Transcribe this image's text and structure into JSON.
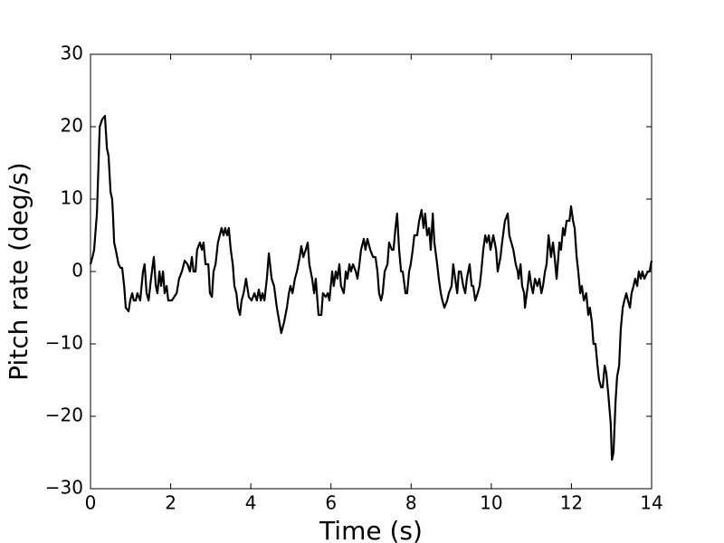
{
  "chart_data": {
    "type": "line",
    "xlabel": "Time (s)",
    "ylabel": "Pitch rate (deg/s)",
    "color": "#000000",
    "x": [
      0,
      0.05,
      0.09,
      0.16,
      0.23,
      0.29,
      0.36,
      0.41,
      0.45,
      0.5,
      0.54,
      0.56,
      0.59,
      0.63,
      0.7,
      0.75,
      0.79,
      0.84,
      0.88,
      0.95,
      0.99,
      1.04,
      1.08,
      1.13,
      1.17,
      1.24,
      1.31,
      1.35,
      1.4,
      1.45,
      1.51,
      1.58,
      1.63,
      1.67,
      1.72,
      1.76,
      1.81,
      1.85,
      1.9,
      1.94,
      2.03,
      2.15,
      2.21,
      2.28,
      2.35,
      2.42,
      2.48,
      2.53,
      2.57,
      2.62,
      2.66,
      2.73,
      2.78,
      2.82,
      2.87,
      2.94,
      2.98,
      3.03,
      3.07,
      3.12,
      3.18,
      3.27,
      3.32,
      3.36,
      3.41,
      3.45,
      3.5,
      3.55,
      3.59,
      3.64,
      3.68,
      3.73,
      3.77,
      3.82,
      3.88,
      3.95,
      4.02,
      4.09,
      4.15,
      4.2,
      4.25,
      4.29,
      4.34,
      4.4,
      4.45,
      4.52,
      4.58,
      4.65,
      4.76,
      4.83,
      4.9,
      4.95,
      4.99,
      5.04,
      5.1,
      5.15,
      5.22,
      5.26,
      5.31,
      5.37,
      5.42,
      5.46,
      5.53,
      5.58,
      5.62,
      5.69,
      5.76,
      5.8,
      5.87,
      5.92,
      5.96,
      6.03,
      6.07,
      6.12,
      6.16,
      6.21,
      6.25,
      6.32,
      6.37,
      6.41,
      6.46,
      6.5,
      6.55,
      6.62,
      6.66,
      6.71,
      6.75,
      6.82,
      6.86,
      6.91,
      6.98,
      7.05,
      7.11,
      7.16,
      7.2,
      7.25,
      7.29,
      7.34,
      7.41,
      7.45,
      7.52,
      7.56,
      7.61,
      7.65,
      7.7,
      7.75,
      7.79,
      7.86,
      7.9,
      7.95,
      7.99,
      8.04,
      8.08,
      8.15,
      8.2,
      8.26,
      8.31,
      8.35,
      8.4,
      8.45,
      8.49,
      8.54,
      8.58,
      8.65,
      8.69,
      8.74,
      8.78,
      8.83,
      8.9,
      8.94,
      9.01,
      9.05,
      9.1,
      9.15,
      9.19,
      9.24,
      9.3,
      9.35,
      9.39,
      9.46,
      9.51,
      9.55,
      9.6,
      9.66,
      9.71,
      9.75,
      9.8,
      9.85,
      9.89,
      9.94,
      9.98,
      10.05,
      10.12,
      10.16,
      10.23,
      10.27,
      10.34,
      10.41,
      10.45,
      10.5,
      10.55,
      10.61,
      10.66,
      10.68,
      10.73,
      10.77,
      10.82,
      10.84,
      10.91,
      10.95,
      11.0,
      11.04,
      11.09,
      11.15,
      11.2,
      11.25,
      11.29,
      11.34,
      11.38,
      11.43,
      11.49,
      11.54,
      11.58,
      11.63,
      11.7,
      11.74,
      11.79,
      11.83,
      11.88,
      11.95,
      11.99,
      12.04,
      12.08,
      12.13,
      12.17,
      12.22,
      12.26,
      12.31,
      12.37,
      12.42,
      12.46,
      12.51,
      12.55,
      12.6,
      12.65,
      12.69,
      12.74,
      12.78,
      12.83,
      12.87,
      12.92,
      12.98,
      13.01,
      13.05,
      13.1,
      13.14,
      13.19,
      13.23,
      13.28,
      13.32,
      13.37,
      13.41,
      13.46,
      13.5,
      13.55,
      13.59,
      13.64,
      13.68,
      13.73,
      13.77,
      13.82,
      13.86,
      13.91,
      13.95,
      14.0
    ],
    "values": [
      1,
      2,
      3,
      8,
      20,
      21,
      21.5,
      17,
      16,
      11,
      10,
      8,
      4,
      3,
      1,
      0.5,
      0.5,
      -2,
      -5,
      -5.5,
      -4,
      -3,
      -4,
      -4,
      -3,
      -4,
      0,
      1,
      -3,
      -4,
      -1,
      2,
      -2,
      -3,
      0,
      -2,
      0,
      -3,
      -2,
      -4,
      -4,
      -3,
      -1,
      0,
      1.5,
      1,
      0,
      2,
      0,
      0,
      3,
      4,
      3,
      4,
      1,
      1,
      -3,
      -3.5,
      0,
      1,
      4,
      6,
      5,
      6,
      5,
      6,
      3,
      1,
      -2,
      -3,
      -5,
      -6,
      -4,
      -3,
      -1,
      -3.5,
      -4,
      -3,
      -4,
      -2.5,
      -4,
      -3,
      -4,
      -1,
      2.5,
      -1,
      -2,
      -5,
      -8.5,
      -7,
      -5,
      -3,
      -2,
      -3,
      -1,
      0,
      2,
      3.5,
      2,
      3,
      4,
      1,
      -1,
      -3,
      -1,
      -6,
      -6,
      -3,
      -3.5,
      -3,
      -4,
      0,
      -2,
      0,
      -1,
      1,
      -2,
      -3,
      0,
      -1,
      1,
      0,
      1,
      0,
      -1,
      1,
      3,
      4.5,
      3,
      4.5,
      3,
      2,
      2,
      0,
      -3,
      -4,
      -3,
      0,
      1,
      4,
      3,
      3,
      6,
      8,
      3,
      0,
      0,
      -3,
      -3,
      0,
      1,
      3,
      5,
      5,
      7,
      8.5,
      6,
      8,
      5,
      6,
      3,
      8,
      4,
      1,
      -1,
      -3,
      -4,
      -5,
      -4,
      -3,
      -2,
      1,
      -1,
      -3,
      0,
      0,
      -2,
      -3,
      -1,
      1,
      -2,
      -2,
      -4,
      -3,
      -2,
      0,
      3,
      5,
      4,
      5,
      3,
      5,
      3,
      0,
      2,
      4,
      7,
      8,
      5,
      4,
      3,
      1,
      0,
      -1,
      1,
      -2,
      -3,
      -5,
      -2,
      0,
      -2,
      -3,
      -1,
      -2,
      -1,
      -3,
      -2,
      0,
      1,
      5,
      2,
      4,
      2,
      -1,
      4,
      3,
      6,
      5,
      7,
      7,
      9,
      7,
      6,
      2,
      0,
      -3,
      -2,
      -4,
      -3,
      -6,
      -5,
      -7,
      -10,
      -10,
      -13,
      -15,
      -16,
      -16,
      -13,
      -14,
      -17,
      -21,
      -26,
      -25,
      -18,
      -14.5,
      -13,
      -8,
      -5,
      -4,
      -3,
      -4,
      -5,
      -3,
      -2,
      -1,
      -2,
      0,
      -1,
      0,
      -1,
      -0.5,
      0,
      0,
      1.5
    ],
    "xlim": [
      0,
      14
    ],
    "xticks": [
      0,
      2,
      4,
      6,
      8,
      10,
      12,
      14
    ],
    "ylim": [
      -30,
      30
    ],
    "yticks": [
      {
        "value": -30,
        "label": "−30"
      },
      {
        "value": -20,
        "label": "−20"
      },
      {
        "value": -10,
        "label": "−10"
      },
      0,
      10,
      20,
      30
    ],
    "grid": false
  }
}
